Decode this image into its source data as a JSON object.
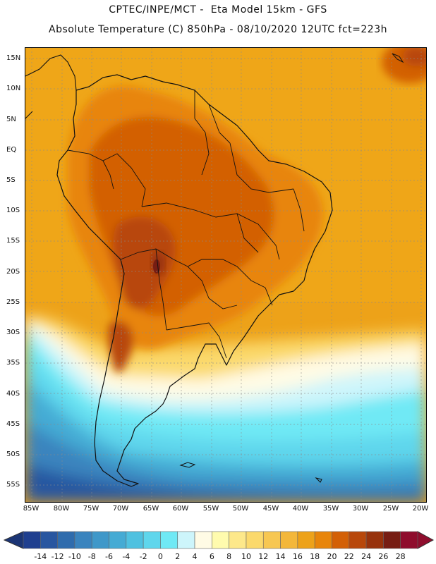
{
  "header": {
    "line1": "CPTEC/INPE/MCT -  Eta Model 15km - GFS",
    "line2": "Absolute Temperature (C) 850hPa - 08/10/2020 12UTC fct=223h"
  },
  "map": {
    "lat_labels": [
      "15N",
      "10N",
      "5N",
      "EQ",
      "5S",
      "10S",
      "15S",
      "20S",
      "25S",
      "30S",
      "35S",
      "40S",
      "45S",
      "50S",
      "55S"
    ],
    "lon_labels": [
      "85W",
      "80W",
      "75W",
      "70W",
      "65W",
      "60W",
      "55W",
      "50W",
      "45W",
      "40W",
      "35W",
      "30W",
      "25W",
      "20W"
    ]
  },
  "colorbar": {
    "labels": [
      "-14",
      "-12",
      "-10",
      "-8",
      "-6",
      "-4",
      "-2",
      "0",
      "2",
      "4",
      "6",
      "8",
      "10",
      "12",
      "14",
      "16",
      "18",
      "20",
      "22",
      "24",
      "26",
      "28"
    ],
    "colors": [
      "#1f3f8f",
      "#2856a0",
      "#2f6cad",
      "#3a84be",
      "#3f98c9",
      "#45abd4",
      "#4fc1e0",
      "#5fd6ec",
      "#6fe9f5",
      "#cdf5fb",
      "#fffbe5",
      "#fffbae",
      "#fde88a",
      "#fbd96c",
      "#f7c752",
      "#f3b73a",
      "#eda219",
      "#e8850a",
      "#d36006",
      "#b8470a",
      "#97320c",
      "#771d13",
      "#8f0d2d"
    ],
    "left_arrow_color": "#1b3575",
    "right_arrow_color": "#8f0d2d"
  }
}
